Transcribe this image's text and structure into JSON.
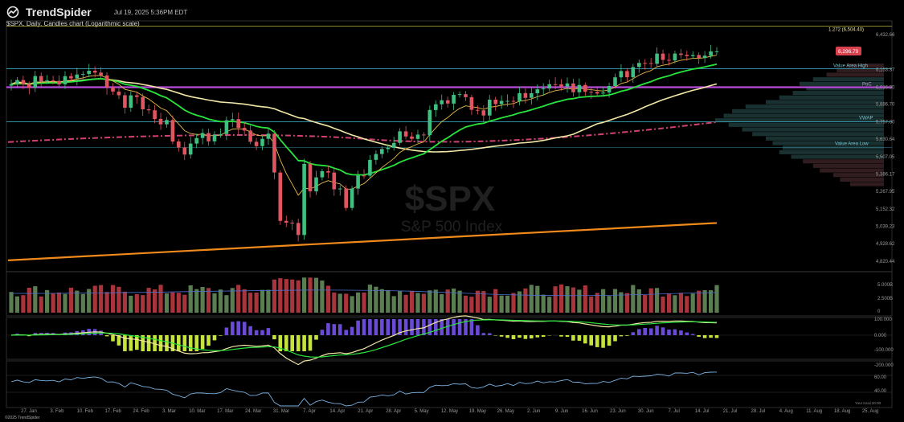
{
  "header": {
    "brand": "TrendSpider",
    "datetime": "Jul 19, 2025 5:36PM EDT",
    "subtitle": "$SPX, Daily, Candles chart (Logarithmic scale)",
    "copyright": "©2025 TrendSpider"
  },
  "watermark": {
    "symbol": "$SPX",
    "name": "S&P 500 Index"
  },
  "colors": {
    "up": "#5b7d52",
    "down": "#a8343c",
    "upBright": "#3fbf80",
    "downBright": "#e0555f",
    "ema_fast": "#e9b949",
    "ema_green": "#27e43c",
    "sma_cream": "#f3e7a6",
    "sma_long": "#f08a1a",
    "vwap_line": "#d24173",
    "poc": "#b84bd8",
    "value_area": "#3aa3b8",
    "fib": "#b9b43a"
  },
  "chart_data": {
    "type": "candlestick",
    "scale": "log",
    "x_ticks": [
      "27. Jan",
      "3. Feb",
      "10. Feb",
      "17. Feb",
      "24. Feb",
      "3. Mar",
      "10. Mar",
      "17. Mar",
      "24. Mar",
      "31. Mar",
      "7. Apr",
      "14. Apr",
      "21. Apr",
      "28. Apr",
      "5. May",
      "12. May",
      "19. May",
      "26. May",
      "2. Jun",
      "9. Jun",
      "16. Jun",
      "23. Jun",
      "30. Jun",
      "7. Jul",
      "14. Jul",
      "21. Jul",
      "28. Jul",
      "4. Aug",
      "11. Aug",
      "18. Aug",
      "25. Aug"
    ],
    "y_ticks": [
      "6,432.66",
      "6,153.37",
      "6,016.30",
      "5,886.70",
      "5,757.00",
      "5,630.64",
      "5,507.05",
      "5,386.17",
      "5,267.95",
      "5,152.32",
      "5,039.23",
      "4,928.62",
      "4,820.44"
    ],
    "closes": [
      6040,
      6071,
      6039,
      6012,
      6102,
      6061,
      6068,
      6065,
      6038,
      6101,
      6084,
      6114,
      6118,
      6144,
      6129,
      6107,
      6013,
      5983,
      5955,
      5861,
      5954,
      5942,
      5849,
      5842,
      5778,
      5738,
      5770,
      5614,
      5572,
      5521,
      5599,
      5639,
      5675,
      5615,
      5662,
      5667,
      5768,
      5776,
      5712,
      5693,
      5612,
      5581,
      5633,
      5670,
      5396,
      5074,
      5062,
      5060,
      4983,
      5456,
      5268,
      5363,
      5405,
      5396,
      5282,
      5287,
      5158,
      5287,
      5376,
      5375,
      5484,
      5525,
      5560,
      5570,
      5604,
      5687,
      5650,
      5633,
      5664,
      5659,
      5844,
      5887,
      5917,
      5892,
      5958,
      5963,
      5940,
      5845,
      5842,
      5803,
      5921,
      5888,
      5912,
      5912,
      5911,
      5971,
      5935,
      5970,
      6000,
      6006,
      6039,
      6038,
      6022,
      6045,
      5977,
      6033,
      5981,
      5980,
      5968,
      5975,
      6025,
      6092,
      6141,
      6093,
      6173,
      6205,
      6204,
      6198,
      6279,
      6229,
      6225,
      6280,
      6269,
      6259,
      6268,
      6244,
      6263,
      6297,
      6297
    ],
    "annotations": [
      {
        "label": "1.272 (6,504.40)"
      },
      {
        "label": "6,296.79"
      },
      {
        "label": "Value Area High"
      },
      {
        "label": "PoC"
      },
      {
        "label": "VWAP"
      },
      {
        "label": "Value Area Low"
      }
    ],
    "volume_ticks": [
      "5.000B",
      "2.500B",
      "0"
    ],
    "macd_ticks": [
      "100.000",
      "0.000",
      "-100.000"
    ],
    "rsi_ticks": [
      "-200.000",
      "60.00",
      "40.00"
    ],
    "rsi_label": "Your local 20.00"
  }
}
